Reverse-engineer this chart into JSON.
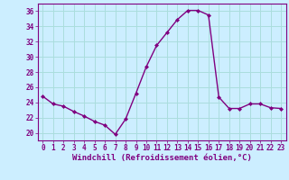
{
  "x": [
    0,
    1,
    2,
    3,
    4,
    5,
    6,
    7,
    8,
    9,
    10,
    11,
    12,
    13,
    14,
    15,
    16,
    17,
    18,
    19,
    20,
    21,
    22,
    23
  ],
  "y": [
    24.8,
    23.8,
    23.5,
    22.8,
    22.2,
    21.5,
    21.0,
    19.8,
    21.8,
    25.2,
    28.7,
    31.5,
    33.2,
    34.9,
    36.1,
    36.1,
    35.5,
    24.7,
    23.2,
    23.2,
    23.8,
    23.8,
    23.3,
    23.2
  ],
  "line_color": "#800080",
  "marker": "D",
  "marker_size": 2,
  "linewidth": 1.0,
  "xlabel": "Windchill (Refroidissement éolien,°C)",
  "xlabel_fontsize": 6.5,
  "ylim": [
    19,
    37
  ],
  "xlim": [
    -0.5,
    23.5
  ],
  "yticks": [
    20,
    22,
    24,
    26,
    28,
    30,
    32,
    34,
    36
  ],
  "xticks": [
    0,
    1,
    2,
    3,
    4,
    5,
    6,
    7,
    8,
    9,
    10,
    11,
    12,
    13,
    14,
    15,
    16,
    17,
    18,
    19,
    20,
    21,
    22,
    23
  ],
  "bg_color": "#cceeff",
  "grid_color": "#aadddd",
  "tick_fontsize": 5.5,
  "tick_color": "#800080",
  "label_color": "#800080",
  "spine_color": "#800080"
}
